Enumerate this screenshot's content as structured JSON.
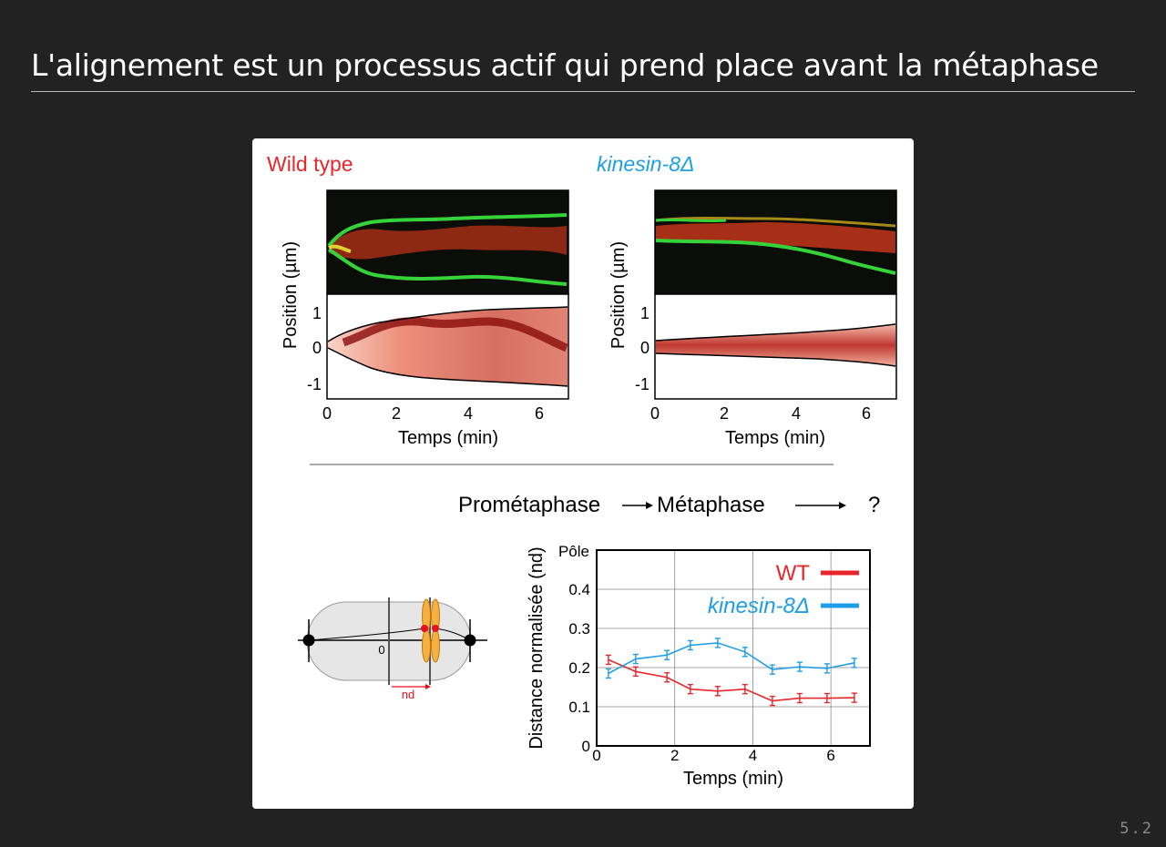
{
  "slide": {
    "title": "L'alignement est un processus actif qui prend place avant la métaphase",
    "number": "5.2"
  },
  "figure": {
    "wt_panel": {
      "label": "Wild type",
      "ylabel": "Position (µm)",
      "xlabel": "Temps (min)",
      "yticks": [
        "1",
        "0",
        "-1"
      ],
      "xticks": [
        "0",
        "2",
        "4",
        "6"
      ]
    },
    "kin_panel": {
      "label": "kinesin-8Δ",
      "ylabel": "Position (µm)",
      "xlabel": "Temps (min)",
      "yticks": [
        "1",
        "0",
        "-1"
      ],
      "xticks": [
        "0",
        "2",
        "4",
        "6"
      ]
    },
    "sequence": {
      "step1": "Prométaphase",
      "step2": "Métaphase",
      "step3": "?"
    },
    "schematic": {
      "zero_label": "0",
      "nd_label": "nd"
    }
  },
  "chart_data": {
    "type": "line",
    "title": "",
    "xlabel": "Temps (min)",
    "ylabel": "Distance normalisée (nd)",
    "top_label": "Pôle",
    "xlim": [
      0,
      7
    ],
    "ylim": [
      0,
      0.5
    ],
    "xticks": [
      "0",
      "2",
      "4",
      "6"
    ],
    "yticks": [
      "0",
      "0.1",
      "0.2",
      "0.3",
      "0.4"
    ],
    "grid": true,
    "legend_position": "top-right",
    "series": [
      {
        "name": "WT",
        "color": "#e8262a",
        "x": [
          0.3,
          1.0,
          1.8,
          2.4,
          3.1,
          3.8,
          4.5,
          5.2,
          5.9,
          6.6
        ],
        "y": [
          0.22,
          0.19,
          0.175,
          0.145,
          0.14,
          0.145,
          0.115,
          0.122,
          0.122,
          0.123
        ]
      },
      {
        "name": "kinesin-8Δ",
        "color": "#1e9ee8",
        "x": [
          0.3,
          1.0,
          1.8,
          2.4,
          3.1,
          3.8,
          4.5,
          5.2,
          5.9,
          6.6
        ],
        "y": [
          0.185,
          0.222,
          0.232,
          0.257,
          0.263,
          0.24,
          0.195,
          0.202,
          0.198,
          0.212
        ]
      }
    ]
  },
  "colors": {
    "wt": "#e8262a",
    "kinesin": "#1e9ee8",
    "background": "#222222",
    "card": "#ffffff"
  }
}
